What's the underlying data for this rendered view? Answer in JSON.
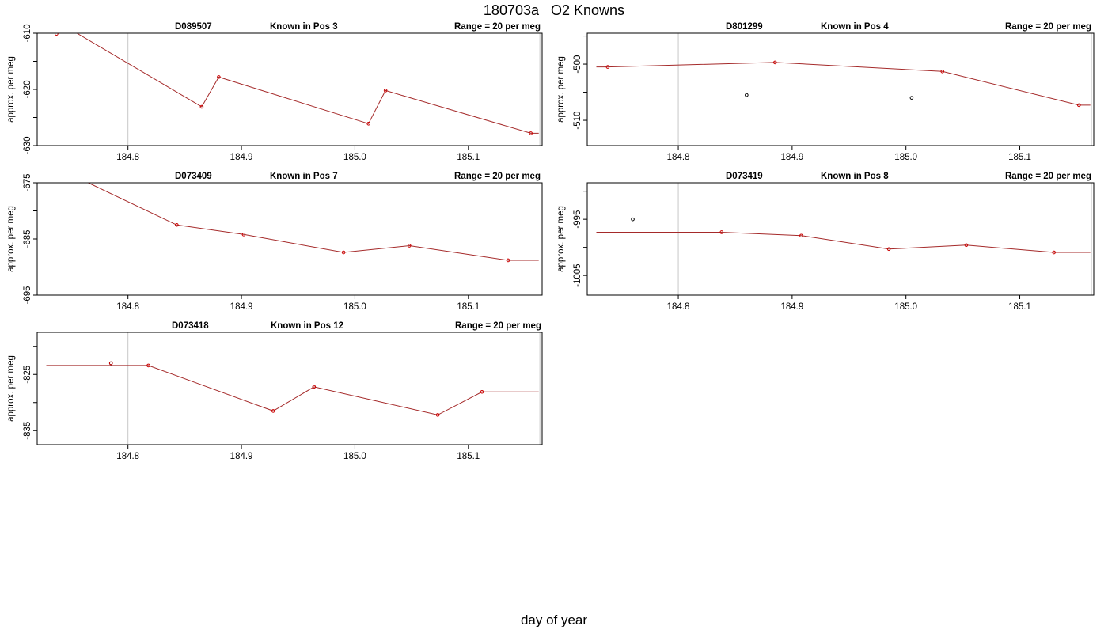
{
  "title": "180703a   O2 Knowns",
  "xlabel": "day of year",
  "colors": {
    "line": "#a52a2a",
    "known_point": "#cc0000",
    "other_point": "#000000",
    "frame": "#000000",
    "vline": "#c8c8c8"
  },
  "chart_data": [
    {
      "type": "line",
      "name": "D089507",
      "label": "Known in Pos 3",
      "range_text": "Range = 20 per meg",
      "title_parts": [
        "D089507",
        "Known in Pos 3",
        "Range = 20 per meg"
      ],
      "ylabel": "approx. per meg",
      "xlim": [
        184.72,
        185.165
      ],
      "ylim": [
        -630,
        -610
      ],
      "x_ticks": [
        184.8,
        184.9,
        185.0,
        185.1
      ],
      "x_tick_labels": [
        "184.8",
        "184.9",
        "185.0",
        "185.1"
      ],
      "y_ticks": [
        -630,
        -625,
        -620,
        -615,
        -610
      ],
      "y_tick_labels": [
        "-630",
        "",
        "-620",
        "",
        "-610"
      ],
      "vlines": [
        184.8,
        185.163
      ],
      "line_x": [
        184.728,
        184.755,
        184.865,
        184.88,
        185.012,
        185.027,
        185.155,
        185.162
      ],
      "line_y": [
        -607.3,
        -610,
        -623.1,
        -617.8,
        -626.1,
        -620.2,
        -627.8,
        -627.8
      ],
      "points": [
        {
          "x": 184.737,
          "y": -610.1,
          "kind": "known"
        },
        {
          "x": 184.865,
          "y": -623.1,
          "kind": "known"
        },
        {
          "x": 184.88,
          "y": -617.8,
          "kind": "known"
        },
        {
          "x": 185.012,
          "y": -626.1,
          "kind": "known"
        },
        {
          "x": 185.027,
          "y": -620.2,
          "kind": "known"
        },
        {
          "x": 185.155,
          "y": -627.8,
          "kind": "known"
        }
      ]
    },
    {
      "type": "line",
      "name": "D801299",
      "label": "Known in Pos 4",
      "range_text": "Range = 20 per meg",
      "title_parts": [
        "D801299",
        "Known in Pos 4",
        "Range = 20 per meg"
      ],
      "ylabel": "approx. per meg",
      "xlim": [
        184.72,
        185.165
      ],
      "ylim": [
        -514.5,
        -494.5
      ],
      "x_ticks": [
        184.8,
        184.9,
        185.0,
        185.1
      ],
      "x_tick_labels": [
        "184.8",
        "184.9",
        "185.0",
        "185.1"
      ],
      "y_ticks": [
        -510,
        -505,
        -500,
        -495
      ],
      "y_tick_labels": [
        "-510",
        "",
        "-500",
        ""
      ],
      "vlines": [
        184.8,
        185.163
      ],
      "line_x": [
        184.728,
        184.738,
        184.885,
        185.032,
        185.152,
        185.162
      ],
      "line_y": [
        -500.5,
        -500.5,
        -499.7,
        -501.3,
        -507.3,
        -507.3
      ],
      "points": [
        {
          "x": 184.738,
          "y": -500.5,
          "kind": "known"
        },
        {
          "x": 184.885,
          "y": -499.7,
          "kind": "known"
        },
        {
          "x": 185.032,
          "y": -501.3,
          "kind": "known"
        },
        {
          "x": 185.152,
          "y": -507.3,
          "kind": "known"
        },
        {
          "x": 184.86,
          "y": -505.5,
          "kind": "other"
        },
        {
          "x": 185.005,
          "y": -506.0,
          "kind": "other"
        }
      ]
    },
    {
      "type": "line",
      "name": "D073409",
      "label": "Known in Pos 7",
      "range_text": "Range = 20 per meg",
      "title_parts": [
        "D073409",
        "Known in Pos 7",
        "Range = 20 per meg"
      ],
      "ylabel": "approx. per meg",
      "xlim": [
        184.72,
        185.165
      ],
      "ylim": [
        -695,
        -675
      ],
      "x_ticks": [
        184.8,
        184.9,
        185.0,
        185.1
      ],
      "x_tick_labels": [
        "184.8",
        "184.9",
        "185.0",
        "185.1"
      ],
      "y_ticks": [
        -695,
        -690,
        -685,
        -680,
        -675
      ],
      "y_tick_labels": [
        "-695",
        "",
        "-685",
        "",
        "-675"
      ],
      "vlines": [],
      "line_x": [
        184.728,
        184.765,
        184.843,
        184.902,
        184.99,
        185.048,
        185.135,
        185.162
      ],
      "line_y": [
        -672,
        -675,
        -682.5,
        -684.2,
        -687.4,
        -686.2,
        -688.8,
        -688.8
      ],
      "points": [
        {
          "x": 184.843,
          "y": -682.5,
          "kind": "known"
        },
        {
          "x": 184.902,
          "y": -684.2,
          "kind": "known"
        },
        {
          "x": 184.99,
          "y": -687.4,
          "kind": "known"
        },
        {
          "x": 185.048,
          "y": -686.2,
          "kind": "known"
        },
        {
          "x": 185.135,
          "y": -688.8,
          "kind": "known"
        }
      ]
    },
    {
      "type": "line",
      "name": "D073419",
      "label": "Known in Pos 8",
      "range_text": "Range = 20 per meg",
      "title_parts": [
        "D073419",
        "Known in Pos 8",
        "Range = 20 per meg"
      ],
      "ylabel": "approx. per meg",
      "xlim": [
        184.72,
        185.165
      ],
      "ylim": [
        -1008.5,
        -988.5
      ],
      "x_ticks": [
        184.8,
        184.9,
        185.0,
        185.1
      ],
      "x_tick_labels": [
        "184.8",
        "184.9",
        "185.0",
        "185.1"
      ],
      "y_ticks": [
        -1005,
        -1000,
        -995,
        -990
      ],
      "y_tick_labels": [
        "-1005",
        "",
        "-995",
        ""
      ],
      "vlines": [
        184.8,
        185.163
      ],
      "line_x": [
        184.728,
        184.838,
        184.908,
        184.985,
        185.053,
        185.13,
        185.162
      ],
      "line_y": [
        -997.3,
        -997.3,
        -997.9,
        -1000.3,
        -999.6,
        -1000.9,
        -1000.9
      ],
      "points": [
        {
          "x": 184.838,
          "y": -997.3,
          "kind": "known"
        },
        {
          "x": 184.908,
          "y": -997.9,
          "kind": "known"
        },
        {
          "x": 184.985,
          "y": -1000.3,
          "kind": "known"
        },
        {
          "x": 185.053,
          "y": -999.6,
          "kind": "known"
        },
        {
          "x": 185.13,
          "y": -1000.9,
          "kind": "known"
        },
        {
          "x": 184.76,
          "y": -995.0,
          "kind": "other"
        }
      ]
    },
    {
      "type": "line",
      "name": "D073418",
      "label": "Known in Pos 12",
      "range_text": "Range = 20 per meg",
      "title_parts": [
        "D073418",
        "Known in Pos 12",
        "Range = 20 per meg"
      ],
      "ylabel": "approx. per meg",
      "xlim": [
        184.72,
        185.165
      ],
      "ylim": [
        -837.5,
        -817.5
      ],
      "x_ticks": [
        184.8,
        184.9,
        185.0,
        185.1
      ],
      "x_tick_labels": [
        "184.8",
        "184.9",
        "185.0",
        "185.1"
      ],
      "y_ticks": [
        -835,
        -830,
        -825,
        -820
      ],
      "y_tick_labels": [
        "-835",
        "",
        "-825",
        ""
      ],
      "vlines": [
        184.8,
        185.163
      ],
      "line_x": [
        184.728,
        184.818,
        184.928,
        184.964,
        185.073,
        185.112,
        185.162
      ],
      "line_y": [
        -823.4,
        -823.4,
        -831.5,
        -827.2,
        -832.2,
        -828.1,
        -828.1
      ],
      "points": [
        {
          "x": 184.818,
          "y": -823.4,
          "kind": "known"
        },
        {
          "x": 184.928,
          "y": -831.5,
          "kind": "known"
        },
        {
          "x": 184.964,
          "y": -827.2,
          "kind": "known"
        },
        {
          "x": 185.073,
          "y": -832.2,
          "kind": "known"
        },
        {
          "x": 185.112,
          "y": -828.1,
          "kind": "known"
        },
        {
          "x": 184.785,
          "y": -823.0,
          "kind": "other"
        },
        {
          "x": 184.785,
          "y": -823.0,
          "kind": "known"
        }
      ]
    }
  ]
}
